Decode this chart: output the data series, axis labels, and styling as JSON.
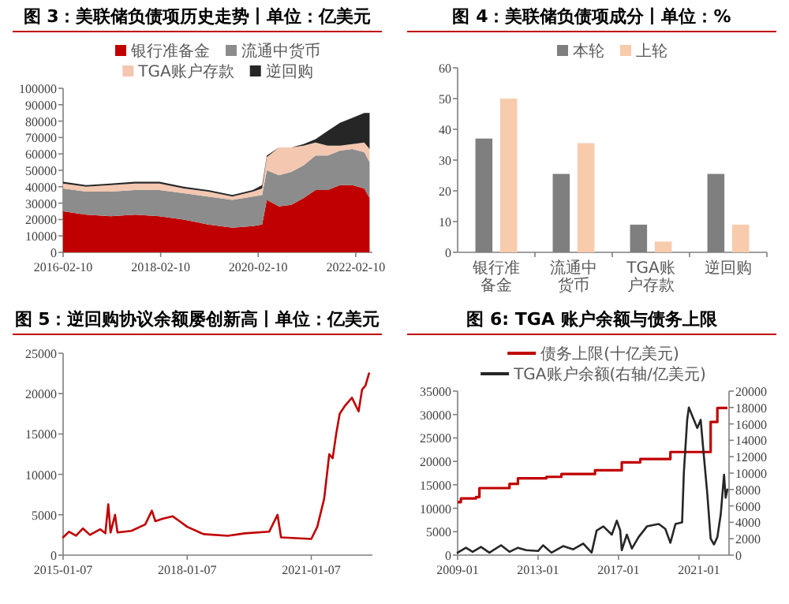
{
  "chart_data": [
    {
      "type": "area",
      "stacked": true,
      "title": "图 3：美联储负债项历史走势丨单位：亿美元",
      "legend": "top",
      "x": [
        "2016-02-10",
        "2016-08-01",
        "2017-02-01",
        "2017-08-01",
        "2018-02-01",
        "2018-08-01",
        "2019-02-01",
        "2019-08-01",
        "2020-01-01",
        "2020-03-11",
        "2020-04-15",
        "2020-07-15",
        "2020-10-15",
        "2021-01-15",
        "2021-04-15",
        "2021-07-15",
        "2021-10-15",
        "2022-01-15",
        "2022-04-15",
        "2022-05-25"
      ],
      "series": [
        {
          "name": "银行准备金",
          "color": "#c00000",
          "values": [
            25000,
            23000,
            22000,
            23000,
            22000,
            20000,
            17000,
            15000,
            16000,
            17000,
            32000,
            28000,
            29000,
            33000,
            38000,
            38000,
            41000,
            41000,
            39000,
            33000
          ]
        },
        {
          "name": "流通中货币",
          "color": "#8c8c8c",
          "values": [
            14000,
            14000,
            15000,
            15000,
            16000,
            16000,
            17000,
            17000,
            18000,
            18000,
            18000,
            19000,
            20000,
            20000,
            21000,
            21000,
            21000,
            22000,
            22000,
            22000
          ]
        },
        {
          "name": "TGA账户存款",
          "color": "#f4c7b0",
          "values": [
            3000,
            3000,
            4000,
            4000,
            4000,
            3000,
            3000,
            2000,
            3000,
            4000,
            8000,
            17000,
            15000,
            12000,
            8000,
            6000,
            3000,
            3000,
            6000,
            8000
          ]
        },
        {
          "name": "逆回购",
          "color": "#262626",
          "values": [
            1000,
            1000,
            1000,
            1000,
            1000,
            1000,
            1000,
            1000,
            1000,
            2000,
            1000,
            0,
            0,
            1000,
            2000,
            9000,
            14000,
            16000,
            18000,
            22000
          ]
        }
      ],
      "xlim": [
        "2016-02-10",
        "2022-06-15"
      ],
      "xticks": [
        "2016-02-10",
        "2018-02-10",
        "2020-02-10",
        "2022-02-10"
      ],
      "ylim": [
        0,
        100000
      ],
      "yticks": [
        0,
        10000,
        20000,
        30000,
        40000,
        50000,
        60000,
        70000,
        80000,
        90000,
        100000
      ]
    },
    {
      "type": "bar",
      "title": "图 4：美联储负债项成分丨单位：%",
      "legend": "top",
      "categories": [
        "银行准备金",
        "流通中货币",
        "TGA账户存款",
        "逆回购"
      ],
      "series": [
        {
          "name": "本轮",
          "color": "#7f7f7f",
          "values": [
            37,
            25.5,
            9,
            25.5
          ]
        },
        {
          "name": "上轮",
          "color": "#f8cbad",
          "values": [
            50,
            35.5,
            3.5,
            9
          ]
        }
      ],
      "ylim": [
        0,
        60
      ],
      "yticks": [
        0,
        10,
        20,
        30,
        40,
        50,
        60
      ]
    },
    {
      "type": "line",
      "title": "图 5：逆回购协议余额屡创新高丨单位：亿美元",
      "x": [
        "2015-01-07",
        "2015-03-01",
        "2015-05-01",
        "2015-07-01",
        "2015-09-01",
        "2015-12-01",
        "2016-01-15",
        "2016-02-10",
        "2016-03-01",
        "2016-04-10",
        "2016-05-01",
        "2016-09-01",
        "2017-01-01",
        "2017-03-01",
        "2017-04-01",
        "2017-06-01",
        "2017-09-01",
        "2017-11-01",
        "2018-01-07",
        "2018-06-01",
        "2019-01-01",
        "2019-06-01",
        "2020-01-01",
        "2020-03-15",
        "2020-04-15",
        "2021-01-07",
        "2021-03-01",
        "2021-05-01",
        "2021-06-15",
        "2021-07-15",
        "2021-08-15",
        "2021-09-15",
        "2021-11-01",
        "2022-01-01",
        "2022-03-01",
        "2022-04-01",
        "2022-05-01",
        "2022-06-01"
      ],
      "series": [
        {
          "color": "#c00000",
          "values": [
            2200,
            2900,
            2400,
            3300,
            2500,
            3200,
            2700,
            6300,
            2800,
            5000,
            2800,
            3000,
            3800,
            5500,
            4200,
            4500,
            4800,
            4200,
            3500,
            2600,
            2400,
            2700,
            2900,
            5000,
            2200,
            2000,
            3500,
            7000,
            12500,
            12000,
            15000,
            17500,
            18500,
            19500,
            17800,
            20500,
            21000,
            22500
          ]
        }
      ],
      "xlim": [
        "2015-01-07",
        "2022-07-01"
      ],
      "xticks": [
        "2015-01-07",
        "2018-01-07",
        "2021-01-07"
      ],
      "ylim": [
        0,
        25000
      ],
      "yticks": [
        0,
        5000,
        10000,
        15000,
        20000,
        25000
      ]
    },
    {
      "type": "line",
      "title": "图 6: TGA 账户余额与债务上限",
      "legend": "top",
      "series": [
        {
          "name": "债务上限(十亿美元)",
          "type": "step",
          "color": "#c00000",
          "x": [
            "2009-01",
            "2009-03",
            "2009-12",
            "2010-02",
            "2011-08",
            "2012-01",
            "2013-06",
            "2014-03",
            "2015-11",
            "2017-03",
            "2018-02",
            "2019-08",
            "2021-08",
            "2021-12",
            "2022-06"
          ],
          "values": [
            11300,
            12100,
            12400,
            14300,
            15200,
            16400,
            16700,
            17300,
            18100,
            19800,
            20500,
            22000,
            28400,
            31400,
            31400
          ]
        },
        {
          "name": "TGA账户余额(右轴/亿美元)",
          "axis": "y2",
          "color": "#262626",
          "x": [
            "2009-01",
            "2009-06",
            "2009-10",
            "2010-03",
            "2010-08",
            "2011-03",
            "2011-08",
            "2012-01",
            "2012-06",
            "2013-01",
            "2013-04",
            "2013-09",
            "2014-04",
            "2014-10",
            "2015-04",
            "2015-09",
            "2015-12",
            "2016-04",
            "2016-09",
            "2016-12",
            "2017-02",
            "2017-03",
            "2017-06",
            "2017-09",
            "2018-01",
            "2018-06",
            "2019-01",
            "2019-05",
            "2019-08",
            "2019-11",
            "2020-03",
            "2020-04",
            "2020-06",
            "2020-07",
            "2020-10",
            "2020-12",
            "2021-02",
            "2021-04",
            "2021-06",
            "2021-08",
            "2021-10",
            "2021-12",
            "2022-02",
            "2022-04",
            "2022-05",
            "2022-06"
          ],
          "values": [
            300,
            900,
            400,
            1000,
            300,
            1200,
            400,
            900,
            600,
            500,
            1200,
            300,
            1100,
            700,
            1400,
            300,
            3000,
            3500,
            2500,
            4200,
            3000,
            600,
            2500,
            800,
            2200,
            3500,
            3800,
            3200,
            1500,
            3800,
            4000,
            10000,
            16500,
            18000,
            16500,
            15500,
            16500,
            12000,
            7500,
            2000,
            1300,
            2200,
            5000,
            9800,
            7000,
            8000
          ]
        }
      ],
      "xlim": [
        "2009-01",
        "2022-07"
      ],
      "xticks": [
        "2009-01",
        "2013-01",
        "2017-01",
        "2021-01"
      ],
      "ylim": [
        0,
        35000
      ],
      "yticks": [
        0,
        5000,
        10000,
        15000,
        20000,
        25000,
        30000,
        35000
      ],
      "y2lim": [
        0,
        20000
      ],
      "y2ticks": [
        0,
        2000,
        4000,
        6000,
        8000,
        10000,
        12000,
        14000,
        16000,
        18000,
        20000
      ]
    }
  ]
}
